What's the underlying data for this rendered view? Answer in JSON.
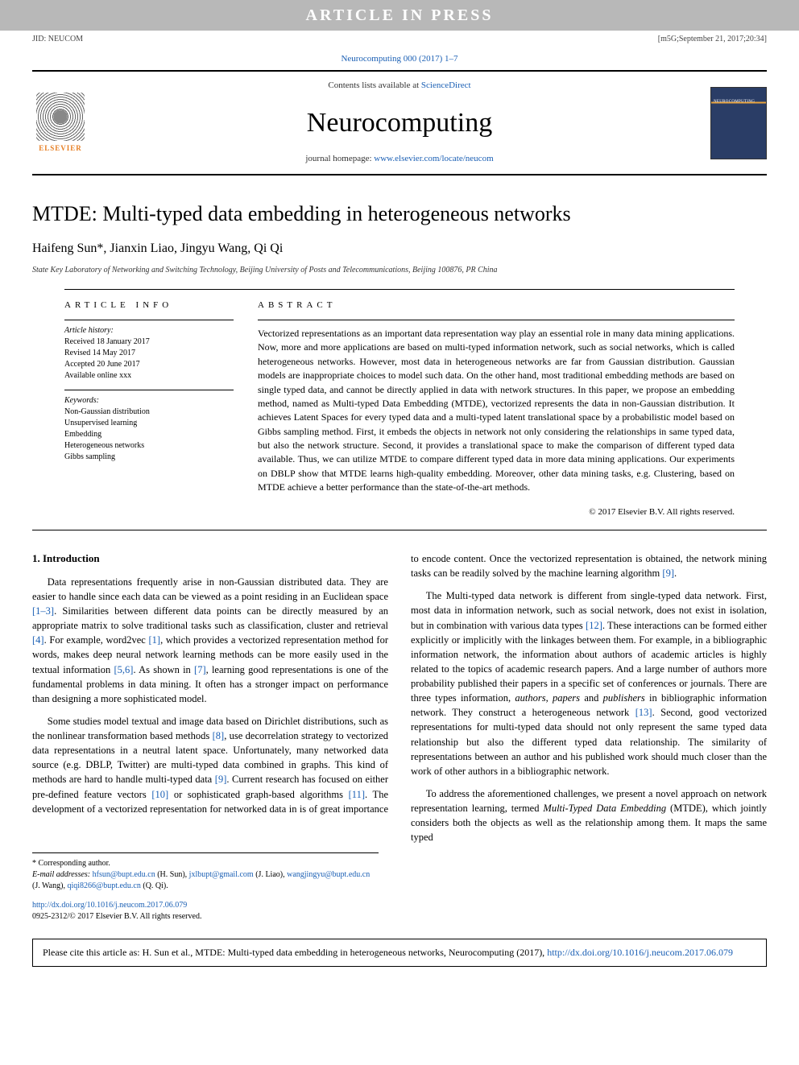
{
  "banner": {
    "text": "ARTICLE IN PRESS"
  },
  "jid": {
    "left": "JID: NEUCOM",
    "right": "[m5G;September 21, 2017;20:34]"
  },
  "citation_link": "Neurocomputing 000 (2017) 1–7",
  "header": {
    "contents_prefix": "Contents lists available at ",
    "contents_link": "ScienceDirect",
    "journal": "Neurocomputing",
    "homepage_prefix": "journal homepage: ",
    "homepage_link": "www.elsevier.com/locate/neucom",
    "elsevier": "ELSEVIER"
  },
  "article": {
    "title": "MTDE: Multi-typed data embedding in heterogeneous networks",
    "authors_html": "Haifeng Sun*, Jianxin Liao, Jingyu Wang, Qi Qi",
    "affiliation": "State Key Laboratory of Networking and Switching Technology, Beijing University of Posts and Telecommunications, Beijing 100876, PR China"
  },
  "info": {
    "label": "ARTICLE INFO",
    "history_label": "Article history:",
    "received": "Received 18 January 2017",
    "revised": "Revised 14 May 2017",
    "accepted": "Accepted 20 June 2017",
    "online": "Available online xxx",
    "keywords_label": "Keywords:",
    "keywords": [
      "Non-Gaussian distribution",
      "Unsupervised learning",
      "Embedding",
      "Heterogeneous networks",
      "Gibbs sampling"
    ]
  },
  "abstract": {
    "label": "ABSTRACT",
    "text": "Vectorized representations as an important data representation way play an essential role in many data mining applications. Now, more and more applications are based on multi-typed information network, such as social networks, which is called heterogeneous networks. However, most data in heterogeneous networks are far from Gaussian distribution. Gaussian models are inappropriate choices to model such data. On the other hand, most traditional embedding methods are based on single typed data, and cannot be directly applied in data with network structures. In this paper, we propose an embedding method, named as Multi-typed Data Embedding (MTDE), vectorized represents the data in non-Gaussian distribution. It achieves Latent Spaces for every typed data and a multi-typed latent translational space by a probabilistic model based on Gibbs sampling method. First, it embeds the objects in network not only considering the relationships in same typed data, but also the network structure. Second, it provides a translational space to make the comparison of different typed data available. Thus, we can utilize MTDE to compare different typed data in more data mining applications. Our experiments on DBLP show that MTDE learns high-quality embedding. Moreover, other data mining tasks, e.g. Clustering, based on MTDE achieve a better performance than the state-of-the-art methods.",
    "copyright": "© 2017 Elsevier B.V. All rights reserved."
  },
  "intro": {
    "heading": "1. Introduction",
    "p1a": "Data representations frequently arise in non-Gaussian distributed data. They are easier to handle since each data can be viewed as a point residing in an Euclidean space ",
    "r1": "[1–3]",
    "p1b": ". Similarities between different data points can be directly measured by an appropriate matrix to solve traditional tasks such as classification, cluster and retrieval ",
    "r2": "[4]",
    "p1c": ". For example, word2vec ",
    "r3": "[1]",
    "p1d": ", which provides a vectorized representation method for words, makes deep neural network learning methods can be more easily used in the textual information ",
    "r4": "[5,6]",
    "p1e": ". As shown in ",
    "r5": "[7]",
    "p1f": ", learning good representations is one of the fundamental problems in data mining. It often has a stronger impact on performance than designing a more sophisticated model.",
    "p2a": "Some studies model textual and image data based on Dirichlet distributions, such as the nonlinear transformation based methods ",
    "r6": "[8]",
    "p2b": ", use decorrelation strategy to vectorized data representations in a neutral latent space. Unfortunately, many networked data source (e.g. DBLP, Twitter) are multi-typed data combined in graphs. This kind of methods are hard to handle multi-typed data ",
    "r7": "[9]",
    "p2c": ". Current research has focused on either pre-defined feature vectors ",
    "r8": "[10]",
    "p2d": " or sophisticated graph-based algorithms ",
    "r9": "[11]",
    "p2e": ". The development of a vectorized representation for networked data in is of great importance to encode content. Once the vectorized representation is obtained, the network mining tasks can be readily solved by the machine learning algorithm ",
    "r10": "[9]",
    "p2f": ".",
    "p3a": "The Multi-typed data network is different from single-typed data network. First, most data in information network, such as social network, does not exist in isolation, but in combination with various data types ",
    "r11": "[12]",
    "p3b": ". These interactions can be formed either explicitly or implicitly with the linkages between them. For example, in a bibliographic information network, the information about authors of academic articles is highly related to the topics of academic research papers. And a large number of authors more probability published their papers in a specific set of conferences or journals. There are three types information, ",
    "p3c": " in bibliographic information network. They construct a heterogeneous network ",
    "r12": "[13]",
    "p3d": ". Second, good vectorized representations for multi-typed data should not only represent the same typed data relationship but also the different typed data relationship. The similarity of representations between an author and his published work should much closer than the work of other authors in a bibliographic network.",
    "p4a": "To address the aforementioned challenges, we present a novel approach on network representation learning, termed ",
    "p4b": " (MTDE), which jointly considers both the objects as well as the relationship among them. It maps the same typed"
  },
  "emph": {
    "authors": "authors",
    "papers": "papers",
    "publishers": "publishers",
    "mtde": "Multi-Typed Data Embedding"
  },
  "footnotes": {
    "corr": "* Corresponding author.",
    "email_label": "E-mail addresses: ",
    "e1": "hfsun@bupt.edu.cn",
    "n1": " (H. Sun), ",
    "e2": "jxlbupt@gmail.com",
    "n2": " (J. Liao), ",
    "e3": "wangjingyu@bupt.edu.cn",
    "n3": " (J. Wang), ",
    "e4": "qiqi8266@bupt.edu.cn",
    "n4": " (Q. Qi)."
  },
  "doi": {
    "link": "http://dx.doi.org/10.1016/j.neucom.2017.06.079",
    "issn": "0925-2312/© 2017 Elsevier B.V. All rights reserved."
  },
  "cite_footer": {
    "prefix": "Please cite this article as: H. Sun et al., MTDE: Multi-typed data embedding in heterogeneous networks, Neurocomputing (2017), ",
    "link": "http://dx.doi.org/10.1016/j.neucom.2017.06.079"
  },
  "colors": {
    "link": "#1a5fb4",
    "banner_bg": "#b8b8b8",
    "elsevier_orange": "#e67e22"
  }
}
